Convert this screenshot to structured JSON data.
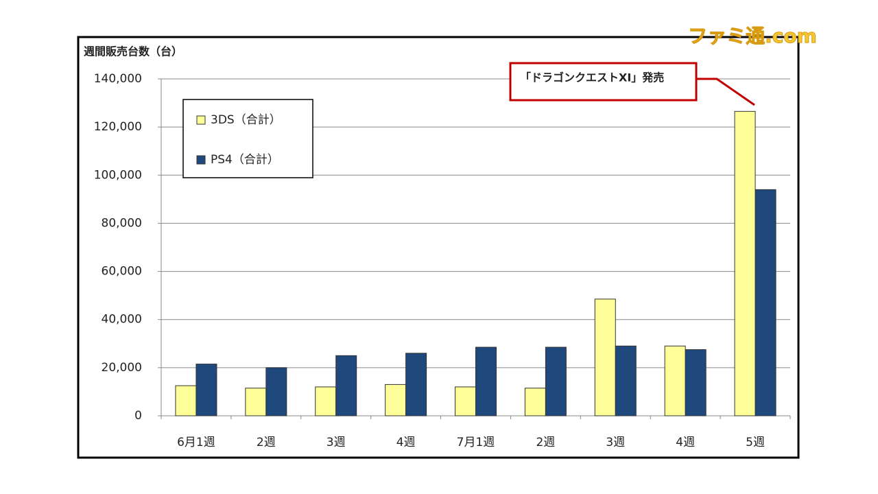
{
  "watermark": "ファミ通.com",
  "chart_data": {
    "type": "bar",
    "y_label": "週間販売台数（台）",
    "annotation": "「ドラゴンクエストXI」発売",
    "categories": [
      "6月1週",
      "2週",
      "3週",
      "4週",
      "7月1週",
      "2週",
      "3週",
      "4週",
      "5週"
    ],
    "series": [
      {
        "name": "3DS（合計）",
        "color": "#ffff99",
        "values": [
          12500,
          11500,
          12000,
          13000,
          12000,
          11500,
          48500,
          29000,
          126500
        ]
      },
      {
        "name": "PS4（合計）",
        "color": "#1f497d",
        "values": [
          21500,
          20000,
          25000,
          26000,
          28500,
          28500,
          29000,
          27500,
          94000
        ]
      }
    ],
    "ylim": [
      0,
      140000
    ],
    "yticks": [
      0,
      {
        "value": 20000,
        "label": "20,000"
      },
      {
        "value": 40000,
        "label": "40,000"
      },
      {
        "value": 60000,
        "label": "60,000"
      },
      {
        "value": 80000,
        "label": "80,000"
      },
      {
        "value": 100000,
        "label": "100,000"
      },
      {
        "value": 120000,
        "label": "120,000"
      },
      {
        "value": 140000,
        "label": "140,000"
      }
    ],
    "grid": true,
    "legend": "upper-left"
  }
}
